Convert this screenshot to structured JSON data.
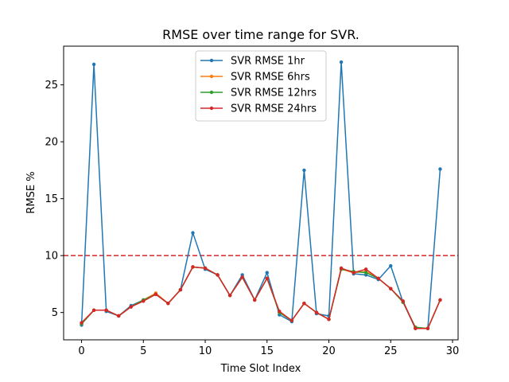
{
  "chart_data": {
    "type": "line",
    "title": "RMSE over time range for SVR.",
    "xlabel": "Time Slot Index",
    "ylabel": "RMSE %",
    "xlim": [
      -1.45,
      30.45
    ],
    "ylim": [
      2.6,
      28.4
    ],
    "xticks": [
      0,
      5,
      10,
      15,
      20,
      25,
      30
    ],
    "yticks": [
      5,
      10,
      15,
      20,
      25
    ],
    "grid": false,
    "legend_position": "upper center",
    "threshold": {
      "y": 10,
      "color": "#d62728",
      "style": "dashed"
    },
    "x": [
      0,
      1,
      2,
      3,
      4,
      5,
      6,
      7,
      8,
      9,
      10,
      11,
      12,
      13,
      14,
      15,
      16,
      17,
      18,
      19,
      20,
      21,
      22,
      23,
      24,
      25,
      26,
      27,
      28,
      29
    ],
    "series": [
      {
        "name": "SVR RMSE 1hr",
        "color": "#1f77b4",
        "values": [
          3.9,
          26.8,
          5.1,
          4.7,
          5.6,
          6.1,
          6.6,
          5.8,
          7.0,
          12.0,
          8.8,
          8.3,
          6.5,
          8.3,
          6.1,
          8.5,
          4.8,
          4.2,
          17.5,
          4.9,
          4.7,
          27.0,
          8.4,
          8.3,
          7.9,
          9.1,
          5.9,
          3.6,
          3.6,
          17.6
        ]
      },
      {
        "name": "SVR RMSE 6hrs",
        "color": "#ff7f0e",
        "values": [
          4.0,
          5.2,
          5.2,
          4.7,
          5.5,
          6.1,
          6.7,
          5.8,
          7.0,
          9.0,
          8.9,
          8.3,
          6.5,
          8.1,
          6.1,
          8.0,
          5.0,
          4.3,
          5.8,
          5.0,
          4.4,
          8.8,
          8.5,
          8.6,
          8.0,
          7.1,
          5.9,
          3.7,
          3.6,
          6.1
        ]
      },
      {
        "name": "SVR RMSE 12hrs",
        "color": "#2ca02c",
        "values": [
          4.0,
          5.2,
          5.2,
          4.7,
          5.5,
          6.1,
          6.6,
          5.8,
          7.0,
          9.0,
          8.9,
          8.3,
          6.5,
          8.1,
          6.1,
          8.0,
          5.0,
          4.3,
          5.8,
          5.0,
          4.4,
          8.8,
          8.6,
          8.5,
          8.0,
          7.1,
          5.9,
          3.7,
          3.6,
          6.1
        ]
      },
      {
        "name": "SVR RMSE 24hrs",
        "color": "#d62728",
        "values": [
          4.1,
          5.2,
          5.2,
          4.7,
          5.5,
          6.0,
          6.6,
          5.8,
          7.0,
          9.0,
          8.9,
          8.3,
          6.5,
          8.1,
          6.1,
          8.0,
          5.1,
          4.3,
          5.8,
          5.0,
          4.4,
          8.9,
          8.5,
          8.8,
          8.0,
          7.1,
          6.0,
          3.6,
          3.6,
          6.1
        ]
      }
    ]
  }
}
